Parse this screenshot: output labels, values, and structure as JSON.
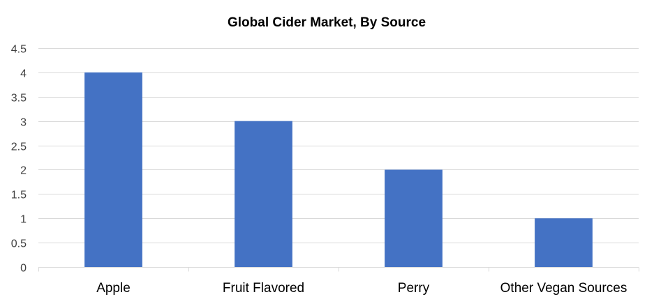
{
  "chart_data": {
    "type": "bar",
    "title": "Global Cider Market, By Source",
    "xlabel": "",
    "ylabel": "",
    "categories": [
      "Apple",
      "Fruit Flavored",
      "Perry",
      "Other Vegan Sources"
    ],
    "values": [
      4,
      3,
      2,
      1
    ],
    "ylim": [
      0,
      4.5
    ],
    "yticks": [
      "0",
      "0.5",
      "1",
      "1.5",
      "2",
      "2.5",
      "3",
      "3.5",
      "4",
      "4.5"
    ],
    "grid": true,
    "legend": "none",
    "bar_color": "#4472c4"
  }
}
